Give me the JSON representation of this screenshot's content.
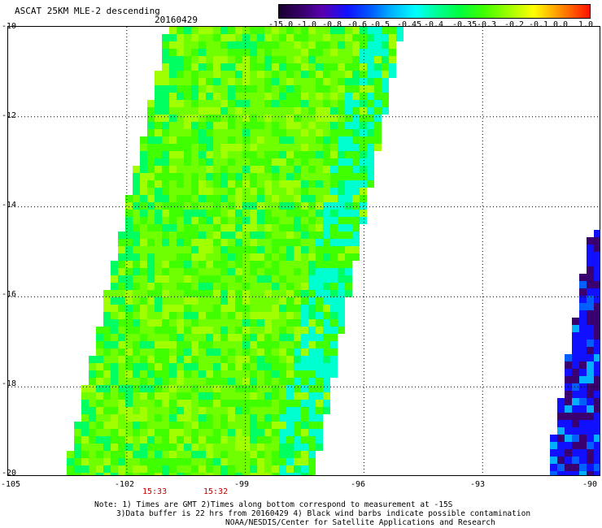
{
  "header": {
    "title": "ASCAT 25KM MLE-2 descending",
    "date": "20160429"
  },
  "colorbar": {
    "labels": [
      "-15.0",
      "-1.0",
      "-0.8",
      "-0.6",
      "-0.5",
      "-0.45",
      "-0.4",
      "-0.35",
      "-0.3",
      "-0.2",
      "-0.1",
      "0.0",
      "1.0"
    ],
    "colors": [
      "#1a0030",
      "#3a0070",
      "#5a00b0",
      "#1010ff",
      "#0060ff",
      "#00b0ff",
      "#00ffff",
      "#00ffa0",
      "#00ff40",
      "#40ff00",
      "#a0ff00",
      "#ffff00",
      "#ff6000",
      "#ff1000"
    ]
  },
  "map": {
    "lat_labels": [
      "-10",
      "-12",
      "-14",
      "-16",
      "-18",
      "-20"
    ],
    "lon_labels": [
      "-105",
      "-102",
      "-99",
      "-96",
      "-93",
      "-90"
    ],
    "lat_range": [
      -20,
      -10
    ],
    "lon_range": [
      -105,
      -90
    ],
    "grid_lats": [
      -12,
      -14,
      -16,
      -18
    ],
    "grid_lons": [
      -102,
      -99,
      -96,
      -93
    ],
    "swath_main_colors": [
      "#40ff00",
      "#70ff00",
      "#a0ff00",
      "#00ff60",
      "#00ffd0"
    ],
    "swath_right_colors": [
      "#1010ff",
      "#3a0070",
      "#0060ff",
      "#00b0ff"
    ]
  },
  "time_labels": [
    {
      "text": "15:33",
      "lon": -101.1
    },
    {
      "text": "15:32",
      "lon": -99.6
    }
  ],
  "notes": [
    "Note: 1) Times are GMT 2)Times along bottom correspond to measurement at -15S",
    "3)Data buffer is 22 hrs from 20160429 4) Black wind barbs indicate possible contamination",
    "NOAA/NESDIS/Center for Satellite Applications and Research"
  ]
}
